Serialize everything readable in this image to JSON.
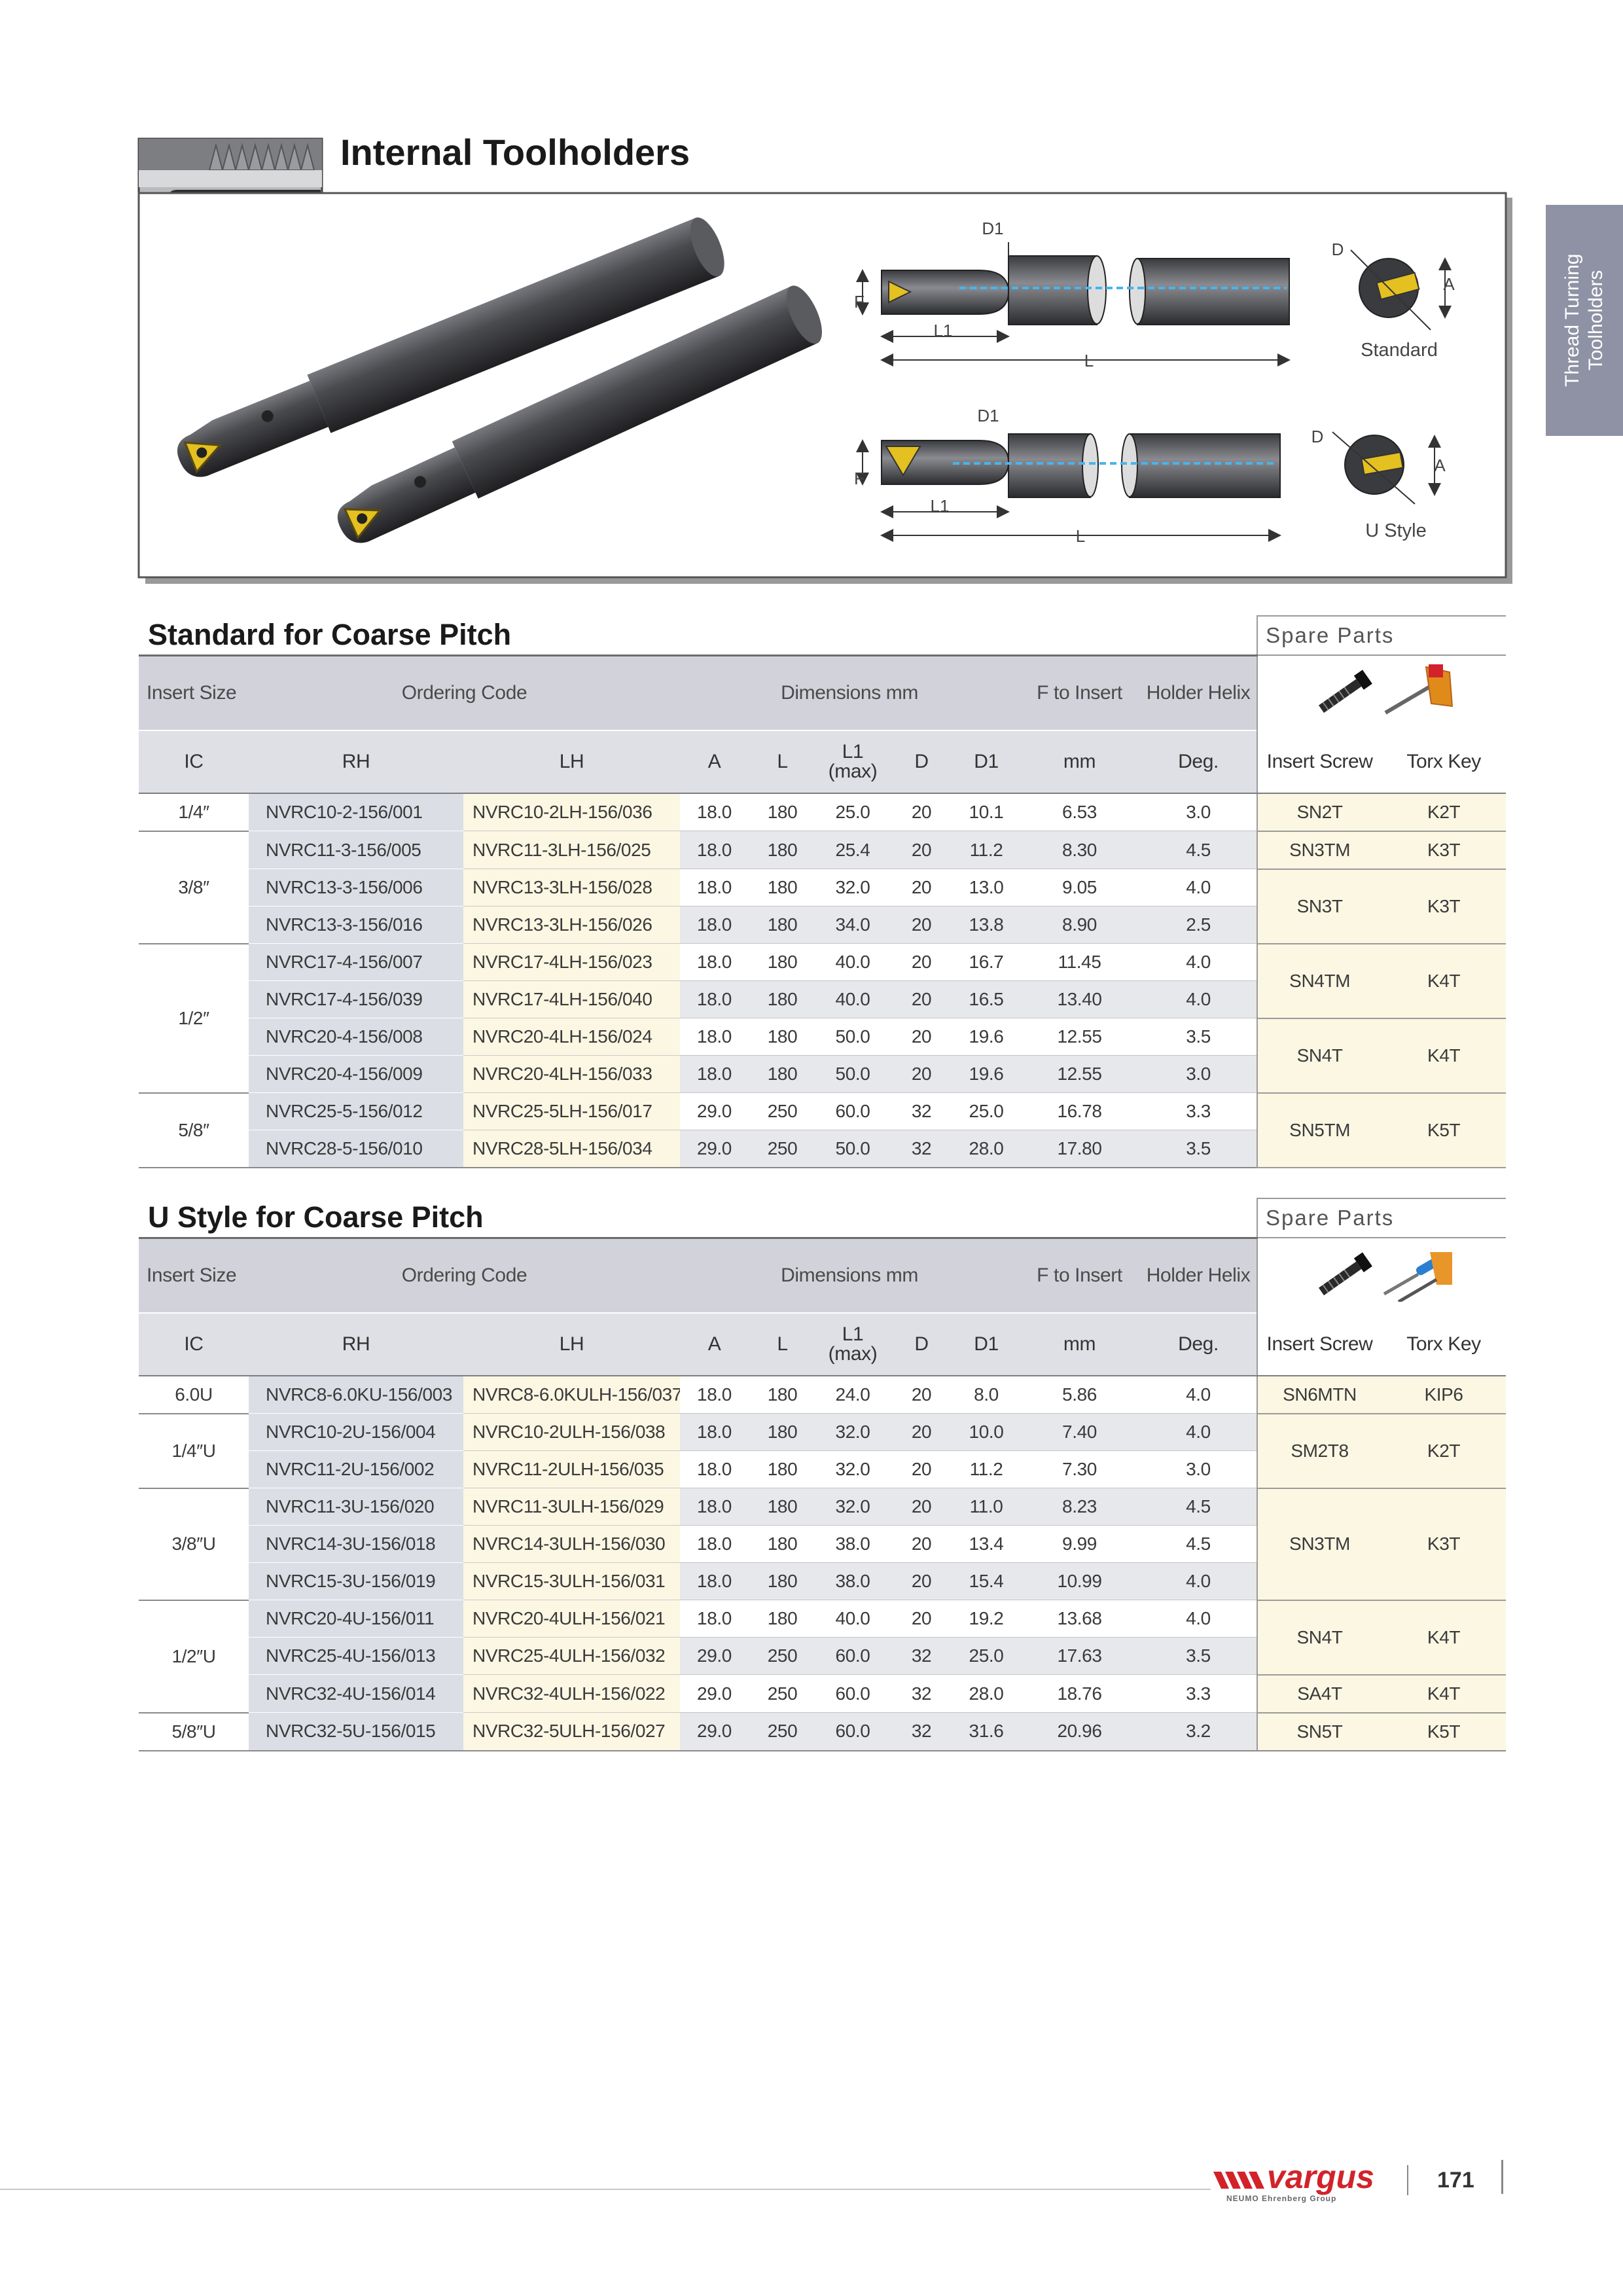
{
  "header": {
    "title": "Internal Toolholders"
  },
  "side_tab": {
    "lines": [
      "Thread Turning",
      "Toolholders"
    ]
  },
  "figure": {
    "diagram_standard": {
      "labels": [
        "D1",
        "F",
        "L1",
        "L",
        "D",
        "A"
      ],
      "caption": "Standard"
    },
    "diagram_u_style": {
      "labels": [
        "D1",
        "F",
        "L1",
        "L",
        "D",
        "A"
      ],
      "caption": "U Style"
    }
  },
  "standard": {
    "title": "Standard for Coarse Pitch",
    "spare_title": "Spare Parts",
    "group_headers": [
      "Insert Size",
      "Ordering Code",
      "Dimensions mm",
      "F to Insert",
      "Holder Helix"
    ],
    "columns": [
      "IC",
      "RH",
      "LH",
      "A",
      "L",
      "L1\n(max)",
      "D",
      "D1",
      "mm",
      "Deg.",
      "Insert Screw",
      "Torx Key"
    ],
    "groups": [
      {
        "ic": "1/4″",
        "parts": [
          {
            "screw": "SN2T",
            "key": "K2T",
            "rows": [
              [
                "NVRC10-2-156/001",
                "NVRC10-2LH-156/036",
                "18.0",
                "180",
                "25.0",
                "20",
                "10.1",
                "6.53",
                "3.0"
              ]
            ]
          }
        ]
      },
      {
        "ic": "3/8″",
        "parts": [
          {
            "screw": "SN3TM",
            "key": "K3T",
            "rows": [
              [
                "NVRC11-3-156/005",
                "NVRC11-3LH-156/025",
                "18.0",
                "180",
                "25.4",
                "20",
                "11.2",
                "8.30",
                "4.5"
              ]
            ]
          },
          {
            "screw": "SN3T",
            "key": "K3T",
            "rows": [
              [
                "NVRC13-3-156/006",
                "NVRC13-3LH-156/028",
                "18.0",
                "180",
                "32.0",
                "20",
                "13.0",
                "9.05",
                "4.0"
              ],
              [
                "NVRC13-3-156/016",
                "NVRC13-3LH-156/026",
                "18.0",
                "180",
                "34.0",
                "20",
                "13.8",
                "8.90",
                "2.5"
              ]
            ]
          }
        ]
      },
      {
        "ic": "1/2″",
        "parts": [
          {
            "screw": "SN4TM",
            "key": "K4T",
            "rows": [
              [
                "NVRC17-4-156/007",
                "NVRC17-4LH-156/023",
                "18.0",
                "180",
                "40.0",
                "20",
                "16.7",
                "11.45",
                "4.0"
              ],
              [
                "NVRC17-4-156/039",
                "NVRC17-4LH-156/040",
                "18.0",
                "180",
                "40.0",
                "20",
                "16.5",
                "13.40",
                "4.0"
              ]
            ]
          },
          {
            "screw": "SN4T",
            "key": "K4T",
            "rows": [
              [
                "NVRC20-4-156/008",
                "NVRC20-4LH-156/024",
                "18.0",
                "180",
                "50.0",
                "20",
                "19.6",
                "12.55",
                "3.5"
              ],
              [
                "NVRC20-4-156/009",
                "NVRC20-4LH-156/033",
                "18.0",
                "180",
                "50.0",
                "20",
                "19.6",
                "12.55",
                "3.0"
              ]
            ]
          }
        ]
      },
      {
        "ic": "5/8″",
        "parts": [
          {
            "screw": "SN5TM",
            "key": "K5T",
            "rows": [
              [
                "NVRC25-5-156/012",
                "NVRC25-5LH-156/017",
                "29.0",
                "250",
                "60.0",
                "32",
                "25.0",
                "16.78",
                "3.3"
              ],
              [
                "NVRC28-5-156/010",
                "NVRC28-5LH-156/034",
                "29.0",
                "250",
                "50.0",
                "32",
                "28.0",
                "17.80",
                "3.5"
              ]
            ]
          }
        ]
      }
    ]
  },
  "u_style": {
    "title": "U Style for Coarse Pitch",
    "spare_title": "Spare Parts",
    "group_headers": [
      "Insert Size",
      "Ordering Code",
      "Dimensions mm",
      "F to Insert",
      "Holder Helix"
    ],
    "columns": [
      "IC",
      "RH",
      "LH",
      "A",
      "L",
      "L1\n(max)",
      "D",
      "D1",
      "mm",
      "Deg.",
      "Insert Screw",
      "Torx Key"
    ],
    "groups": [
      {
        "ic": "6.0U",
        "parts": [
          {
            "screw": "SN6MTN",
            "key": "KIP6",
            "rows": [
              [
                "NVRC8-6.0KU-156/003",
                "NVRC8-6.0KULH-156/037",
                "18.0",
                "180",
                "24.0",
                "20",
                "8.0",
                "5.86",
                "4.0"
              ]
            ]
          }
        ]
      },
      {
        "ic": "1/4″U",
        "parts": [
          {
            "screw": "SM2T8",
            "key": "K2T",
            "rows": [
              [
                "NVRC10-2U-156/004",
                "NVRC10-2ULH-156/038",
                "18.0",
                "180",
                "32.0",
                "20",
                "10.0",
                "7.40",
                "4.0"
              ],
              [
                "NVRC11-2U-156/002",
                "NVRC11-2ULH-156/035",
                "18.0",
                "180",
                "32.0",
                "20",
                "11.2",
                "7.30",
                "3.0"
              ]
            ]
          }
        ]
      },
      {
        "ic": "3/8″U",
        "parts": [
          {
            "screw": "SN3TM",
            "key": "K3T",
            "rows": [
              [
                "NVRC11-3U-156/020",
                "NVRC11-3ULH-156/029",
                "18.0",
                "180",
                "32.0",
                "20",
                "11.0",
                "8.23",
                "4.5"
              ],
              [
                "NVRC14-3U-156/018",
                "NVRC14-3ULH-156/030",
                "18.0",
                "180",
                "38.0",
                "20",
                "13.4",
                "9.99",
                "4.5"
              ],
              [
                "NVRC15-3U-156/019",
                "NVRC15-3ULH-156/031",
                "18.0",
                "180",
                "38.0",
                "20",
                "15.4",
                "10.99",
                "4.0"
              ]
            ]
          }
        ]
      },
      {
        "ic": "1/2″U",
        "parts": [
          {
            "screw": "SN4T",
            "key": "K4T",
            "rows": [
              [
                "NVRC20-4U-156/011",
                "NVRC20-4ULH-156/021",
                "18.0",
                "180",
                "40.0",
                "20",
                "19.2",
                "13.68",
                "4.0"
              ],
              [
                "NVRC25-4U-156/013",
                "NVRC25-4ULH-156/032",
                "29.0",
                "250",
                "60.0",
                "32",
                "25.0",
                "17.63",
                "3.5"
              ]
            ]
          },
          {
            "screw": "SA4T",
            "key": "K4T",
            "rows": [
              [
                "NVRC32-4U-156/014",
                "NVRC32-4ULH-156/022",
                "29.0",
                "250",
                "60.0",
                "32",
                "28.0",
                "18.76",
                "3.3"
              ]
            ]
          }
        ]
      },
      {
        "ic": "5/8″U",
        "parts": [
          {
            "screw": "SN5T",
            "key": "K5T",
            "rows": [
              [
                "NVRC32-5U-156/015",
                "NVRC32-5ULH-156/027",
                "29.0",
                "250",
                "60.0",
                "32",
                "31.6",
                "20.96",
                "3.2"
              ]
            ]
          }
        ]
      }
    ]
  },
  "footer": {
    "brand": "vargus",
    "group": "NEUMO Ehrenberg Group",
    "page": "171"
  }
}
